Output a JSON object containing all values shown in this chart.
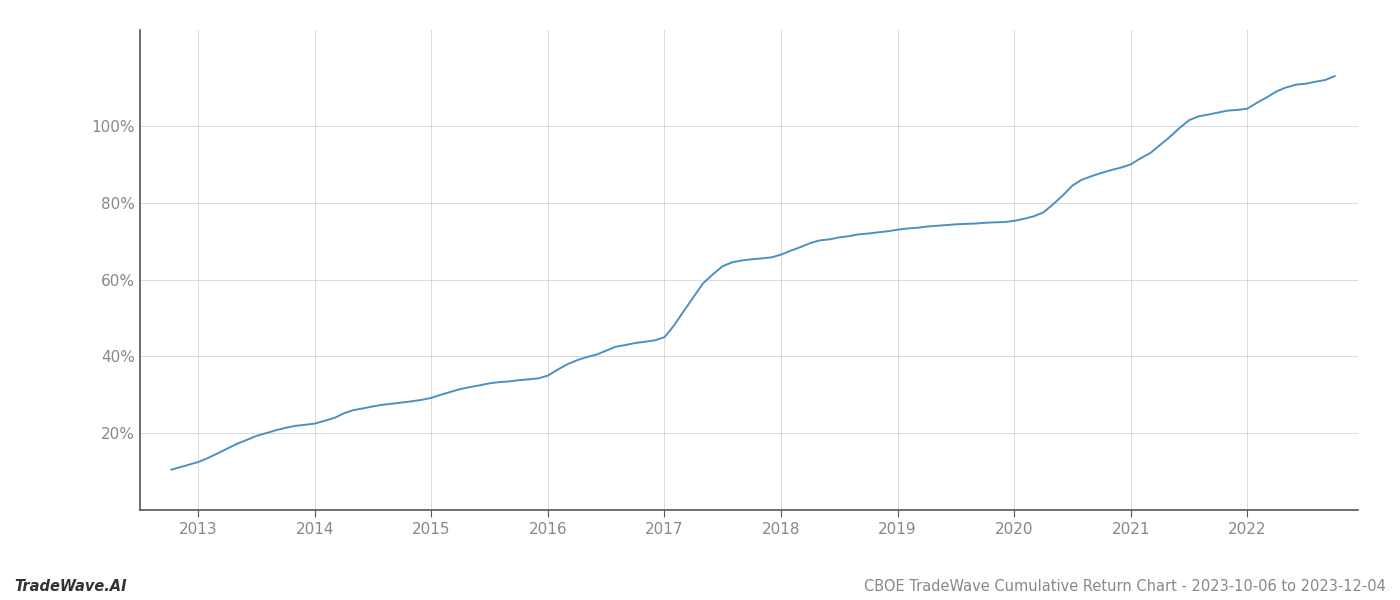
{
  "title": "CBOE TradeWave Cumulative Return Chart - 2023-10-06 to 2023-12-04",
  "watermark": "TradeWave.AI",
  "line_color": "#4a90c4",
  "background_color": "#ffffff",
  "grid_color": "#cccccc",
  "axis_color": "#888888",
  "years": [
    2013,
    2014,
    2015,
    2016,
    2017,
    2018,
    2019,
    2020,
    2021,
    2022
  ],
  "x_values": [
    2012.77,
    2013.0,
    2013.08,
    2013.17,
    2013.25,
    2013.33,
    2013.42,
    2013.5,
    2013.58,
    2013.67,
    2013.75,
    2013.83,
    2013.92,
    2014.0,
    2014.08,
    2014.17,
    2014.25,
    2014.33,
    2014.42,
    2014.5,
    2014.58,
    2014.67,
    2014.75,
    2014.83,
    2014.92,
    2015.0,
    2015.08,
    2015.17,
    2015.25,
    2015.33,
    2015.42,
    2015.5,
    2015.58,
    2015.67,
    2015.75,
    2015.83,
    2015.92,
    2016.0,
    2016.08,
    2016.17,
    2016.25,
    2016.33,
    2016.42,
    2016.5,
    2016.58,
    2016.67,
    2016.75,
    2016.83,
    2016.92,
    2017.0,
    2017.08,
    2017.17,
    2017.25,
    2017.33,
    2017.42,
    2017.5,
    2017.58,
    2017.67,
    2017.75,
    2017.83,
    2017.92,
    2018.0,
    2018.08,
    2018.17,
    2018.25,
    2018.33,
    2018.42,
    2018.5,
    2018.58,
    2018.67,
    2018.75,
    2018.83,
    2018.92,
    2019.0,
    2019.08,
    2019.17,
    2019.25,
    2019.33,
    2019.42,
    2019.5,
    2019.58,
    2019.67,
    2019.75,
    2019.83,
    2019.92,
    2020.0,
    2020.08,
    2020.17,
    2020.25,
    2020.33,
    2020.42,
    2020.5,
    2020.58,
    2020.67,
    2020.75,
    2020.83,
    2020.92,
    2021.0,
    2021.08,
    2021.17,
    2021.25,
    2021.33,
    2021.42,
    2021.5,
    2021.58,
    2021.67,
    2021.75,
    2021.83,
    2021.92,
    2022.0,
    2022.08,
    2022.17,
    2022.25,
    2022.33,
    2022.42,
    2022.5,
    2022.58,
    2022.67,
    2022.75
  ],
  "y_values": [
    10.5,
    12.5,
    13.5,
    14.8,
    16.0,
    17.2,
    18.3,
    19.3,
    20.0,
    20.8,
    21.4,
    21.9,
    22.2,
    22.5,
    23.2,
    24.0,
    25.2,
    26.0,
    26.5,
    27.0,
    27.4,
    27.7,
    28.0,
    28.3,
    28.7,
    29.2,
    30.0,
    30.8,
    31.5,
    32.0,
    32.5,
    33.0,
    33.3,
    33.5,
    33.8,
    34.0,
    34.3,
    35.0,
    36.5,
    38.0,
    39.0,
    39.8,
    40.5,
    41.5,
    42.5,
    43.0,
    43.5,
    43.8,
    44.2,
    45.0,
    48.0,
    52.0,
    55.5,
    59.0,
    61.5,
    63.5,
    64.5,
    65.0,
    65.3,
    65.5,
    65.8,
    66.5,
    67.5,
    68.5,
    69.5,
    70.2,
    70.5,
    71.0,
    71.3,
    71.8,
    72.0,
    72.3,
    72.6,
    73.0,
    73.3,
    73.5,
    73.8,
    74.0,
    74.2,
    74.4,
    74.5,
    74.6,
    74.8,
    74.9,
    75.0,
    75.3,
    75.8,
    76.5,
    77.5,
    79.5,
    82.0,
    84.5,
    86.0,
    87.0,
    87.8,
    88.5,
    89.2,
    90.0,
    91.5,
    93.0,
    95.0,
    97.0,
    99.5,
    101.5,
    102.5,
    103.0,
    103.5,
    104.0,
    104.2,
    104.5,
    106.0,
    107.5,
    109.0,
    110.0,
    110.8,
    111.0,
    111.5,
    112.0,
    113.0
  ],
  "yticks": [
    20,
    40,
    60,
    80,
    100
  ],
  "ylim": [
    0,
    125
  ],
  "xlim": [
    2012.5,
    2022.95
  ],
  "title_fontsize": 10.5,
  "watermark_fontsize": 10.5,
  "tick_fontsize": 11,
  "line_width": 1.4
}
